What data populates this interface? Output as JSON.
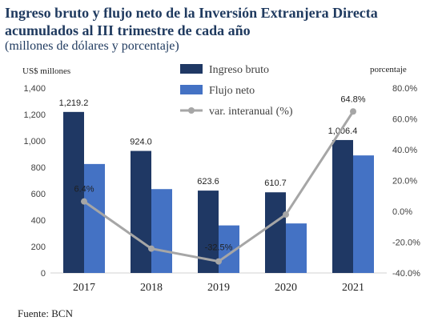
{
  "title": "Ingreso bruto y flujo neto de la Inversión Extranjera Directa acumulados al III trimestre de cada año",
  "subtitle": "(millones de dólares y porcentaje)",
  "source": "Fuente: BCN",
  "colors": {
    "gross": "#1f3864",
    "net": "#4472c4",
    "yoy": "#a6a6a6"
  },
  "chart_data": {
    "type": "bar",
    "categories": [
      "2017",
      "2018",
      "2019",
      "2020",
      "2021"
    ],
    "series": [
      {
        "name": "Ingreso bruto",
        "type": "bar",
        "axis": "left",
        "values": [
          1219.2,
          924.0,
          623.6,
          610.7,
          1006.4
        ],
        "labels": [
          "1,219.2",
          "924.0",
          "623.6",
          "610.7",
          "1,006.4"
        ]
      },
      {
        "name": "Flujo neto",
        "type": "bar",
        "axis": "left",
        "values": [
          825,
          635,
          360,
          375,
          890
        ]
      },
      {
        "name": "var. interanual (%)",
        "type": "line",
        "axis": "right",
        "values": [
          6.4,
          -24.2,
          -32.5,
          -2.1,
          64.8
        ],
        "labels": [
          "6.4%",
          "",
          "-32.5%",
          "",
          "64.8%"
        ]
      }
    ],
    "y_left": {
      "label": "US$ millones",
      "lim": [
        0,
        1400
      ],
      "ticks": [
        "0",
        "200",
        "400",
        "600",
        "800",
        "1,000",
        "1,200",
        "1,400"
      ]
    },
    "y_right": {
      "label": "porcentaje",
      "lim": [
        -40,
        80
      ],
      "ticks": [
        "-40.0%",
        "-20.0%",
        "0.0%",
        "20.0%",
        "40.0%",
        "60.0%",
        "80.0%"
      ]
    },
    "legend": "top-right",
    "grid": false
  }
}
